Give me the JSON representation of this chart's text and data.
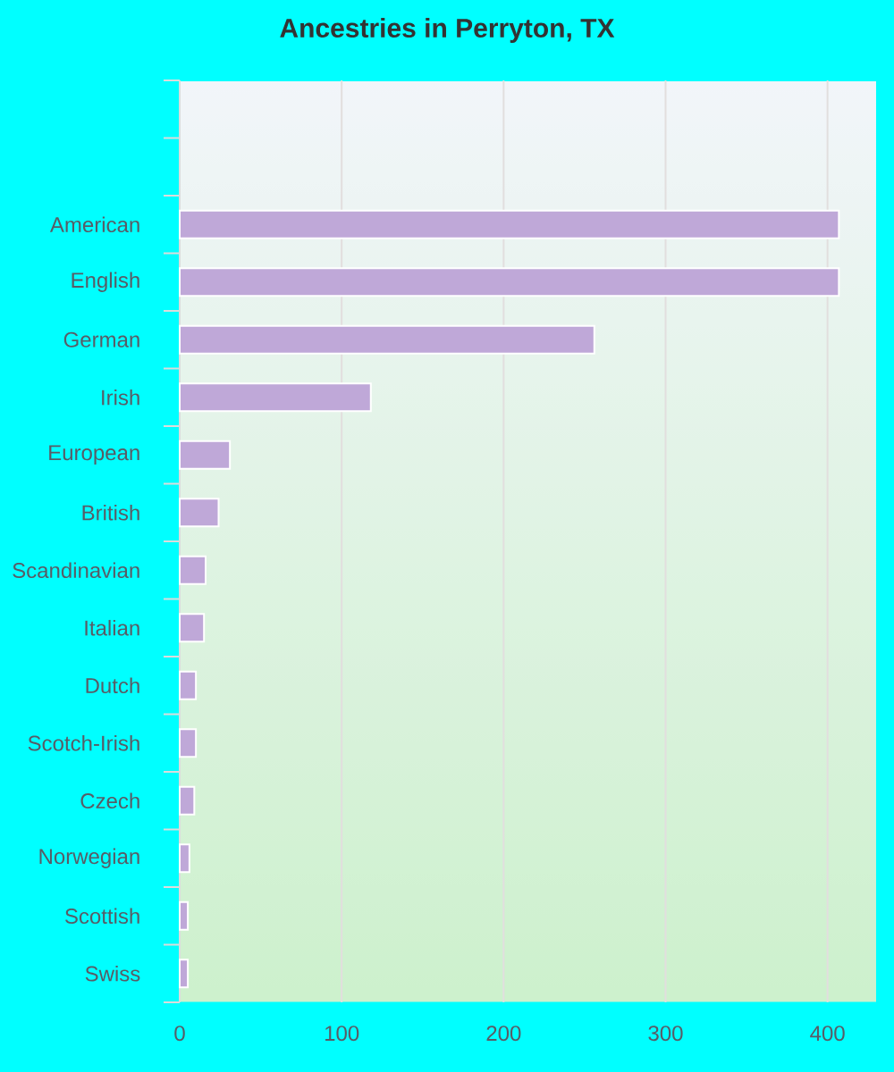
{
  "chart_data": {
    "type": "bar",
    "orientation": "horizontal",
    "title": "Ancestries in Perryton, TX",
    "categories": [
      null,
      null,
      "American",
      "English",
      "German",
      "Irish",
      "European",
      "British",
      "Scandinavian",
      "Italian",
      "Dutch",
      "Scotch-Irish",
      "Czech",
      "Norwegian",
      "Scottish",
      "Swiss"
    ],
    "values": [
      null,
      null,
      407,
      407,
      256,
      118,
      31,
      24,
      16,
      15,
      10,
      10,
      9,
      6,
      5,
      5
    ],
    "color": "#bfa8d8",
    "xlim": [
      0,
      430
    ],
    "xticks": [
      0,
      100,
      200,
      300,
      400
    ],
    "grid": "x"
  }
}
